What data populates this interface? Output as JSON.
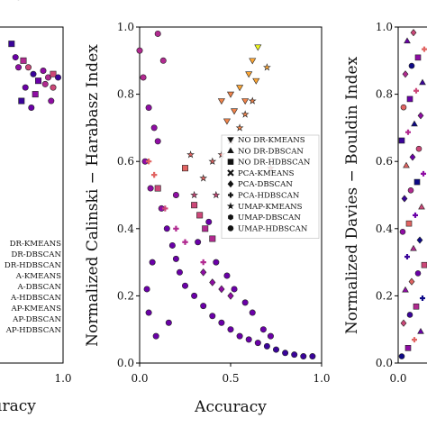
{
  "chart_data": [
    {
      "type": "scatter",
      "panel": "left (cropped)",
      "xlabel": "Accuracy",
      "ylabel": "",
      "xlim": [
        0,
        1.0
      ],
      "ylim": [
        0,
        1.0
      ],
      "x_tick_labels": [
        "1.0"
      ],
      "legend": {
        "placement": "lower-left (cropped)",
        "entries": [
          {
            "label": "DR-KMEANS",
            "marker": "triangle-down"
          },
          {
            "label": "DR-DBSCAN",
            "marker": "triangle-up"
          },
          {
            "label": "DR-HDBSCAN",
            "marker": "square"
          },
          {
            "label": "A-KMEANS",
            "marker": "x"
          },
          {
            "label": "A-DBSCAN",
            "marker": "diamond"
          },
          {
            "label": "A-HDBSCAN",
            "marker": "plus"
          },
          {
            "label": "AP-KMEANS",
            "marker": "star"
          },
          {
            "label": "AP-DBSCAN",
            "marker": "hexagon"
          },
          {
            "label": "AP-HDBSCAN",
            "marker": "circle"
          }
        ]
      }
    },
    {
      "type": "scatter",
      "panel": "middle",
      "xlabel": "Accuracy",
      "ylabel": "Normalized Calinski − Harabasz Index",
      "xlim": [
        0,
        1.0
      ],
      "ylim": [
        0,
        1.0
      ],
      "x_ticks": [
        0,
        0.5,
        1.0
      ],
      "x_tick_labels": [
        "0.0",
        "0.5",
        "1.0"
      ],
      "y_ticks": [
        0,
        0.2,
        0.4,
        0.6,
        0.8,
        1.0
      ],
      "y_tick_labels": [
        "0.0",
        "0.2",
        "0.4",
        "0.6",
        "0.8",
        "1.0"
      ],
      "grid": false,
      "color_scale": "plasma (dark blue → purple → pink → orange → yellow)",
      "legend": {
        "placement": "right-center",
        "entries": [
          {
            "label": "NO DR-KMEANS",
            "marker": "triangle-down"
          },
          {
            "label": "NO DR-DBSCAN",
            "marker": "triangle-up"
          },
          {
            "label": "NO DR-HDBSCAN",
            "marker": "square"
          },
          {
            "label": "PCA-KMEANS",
            "marker": "x"
          },
          {
            "label": "PCA-DBSCAN",
            "marker": "diamond"
          },
          {
            "label": "PCA-HDBSCAN",
            "marker": "plus"
          },
          {
            "label": "UMAP-KMEANS",
            "marker": "star"
          },
          {
            "label": "UMAP-DBSCAN",
            "marker": "hexagon"
          },
          {
            "label": "UMAP-HDBSCAN",
            "marker": "circle"
          }
        ]
      },
      "series": [
        {
          "marker": "circle",
          "x": [
            0.0,
            0.02,
            0.05,
            0.08,
            0.1,
            0.03,
            0.06,
            0.12,
            0.15,
            0.18,
            0.2,
            0.22,
            0.25,
            0.3,
            0.35,
            0.4,
            0.45,
            0.5,
            0.55,
            0.6,
            0.65,
            0.7,
            0.75,
            0.8,
            0.85,
            0.9,
            0.95,
            0.1,
            0.13,
            0.07,
            0.04,
            0.16,
            0.32,
            0.38,
            0.42,
            0.48,
            0.52,
            0.58,
            0.62,
            0.68,
            0.72,
            0.2,
            0.05,
            0.09
          ],
          "y": [
            0.93,
            0.85,
            0.76,
            0.7,
            0.66,
            0.6,
            0.52,
            0.46,
            0.4,
            0.35,
            0.31,
            0.27,
            0.23,
            0.2,
            0.17,
            0.14,
            0.12,
            0.1,
            0.08,
            0.07,
            0.06,
            0.05,
            0.04,
            0.03,
            0.025,
            0.02,
            0.02,
            0.98,
            0.9,
            0.3,
            0.22,
            0.12,
            0.36,
            0.42,
            0.3,
            0.26,
            0.22,
            0.18,
            0.15,
            0.1,
            0.08,
            0.5,
            0.15,
            0.08
          ]
        },
        {
          "marker": "triangle-down",
          "x": [
            0.45,
            0.5,
            0.55,
            0.6,
            0.62,
            0.65,
            0.48,
            0.52,
            0.58,
            0.64
          ],
          "y": [
            0.78,
            0.8,
            0.82,
            0.86,
            0.9,
            0.94,
            0.72,
            0.75,
            0.78,
            0.84
          ]
        },
        {
          "marker": "star",
          "x": [
            0.3,
            0.35,
            0.4,
            0.45,
            0.5,
            0.55,
            0.58,
            0.62,
            0.7,
            0.72,
            0.28,
            0.42
          ],
          "y": [
            0.5,
            0.55,
            0.6,
            0.62,
            0.66,
            0.7,
            0.74,
            0.78,
            0.88,
            0.58,
            0.62,
            0.5
          ]
        },
        {
          "marker": "plus",
          "x": [
            0.05,
            0.08,
            0.1,
            0.14,
            0.2,
            0.25,
            0.35
          ],
          "y": [
            0.6,
            0.56,
            0.52,
            0.46,
            0.4,
            0.36,
            0.3
          ]
        },
        {
          "marker": "square",
          "x": [
            0.1,
            0.3,
            0.33,
            0.36,
            0.4,
            0.25
          ],
          "y": [
            0.52,
            0.47,
            0.44,
            0.4,
            0.37,
            0.58
          ]
        },
        {
          "marker": "diamond",
          "x": [
            0.35,
            0.4,
            0.45,
            0.5
          ],
          "y": [
            0.27,
            0.24,
            0.22,
            0.2
          ]
        }
      ]
    },
    {
      "type": "scatter",
      "panel": "right (cropped)",
      "xlabel": "",
      "ylabel": "Normalized Davies − Bouldin Index",
      "xlim": [
        0,
        1.0
      ],
      "ylim": [
        0,
        1.0
      ],
      "x_tick_labels": [
        "0.0"
      ],
      "y_ticks": [
        0,
        0.2,
        0.4,
        0.6,
        0.8,
        1.0
      ],
      "y_tick_labels": [
        "0.0",
        "0.2",
        "0.4",
        "0.6",
        "0.8",
        "1.0"
      ]
    }
  ]
}
